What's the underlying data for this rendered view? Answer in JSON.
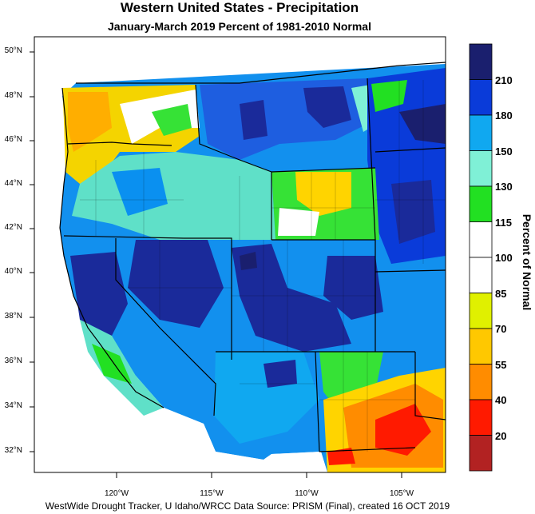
{
  "title": "Western United States - Precipitation",
  "subtitle": "January-March 2019  Percent of 1981-2010 Normal",
  "footer": "WestWide Drought Tracker, U Idaho/WRCC Data Source: PRISM (Final), created 16 OCT 2019",
  "lat_ticks": [
    "50°N",
    "48°N",
    "46°N",
    "44°N",
    "42°N",
    "40°N",
    "38°N",
    "36°N",
    "34°N",
    "32°N"
  ],
  "lon_ticks": [
    "120°W",
    "115°W",
    "110°W",
    "105°W"
  ],
  "colorbar": {
    "title": "Percent of Normal",
    "labels": [
      "210",
      "180",
      "150",
      "130",
      "115",
      "100",
      "85",
      "70",
      "55",
      "40",
      "20"
    ],
    "colors": [
      "#1a1f6e",
      "#0a3bd9",
      "#10a8f0",
      "#7ff0d6",
      "#22e022",
      "#ffffff",
      "#ffffff",
      "#e0f000",
      "#ffc800",
      "#ff8c00",
      "#ff1a00",
      "#b22222"
    ]
  }
}
